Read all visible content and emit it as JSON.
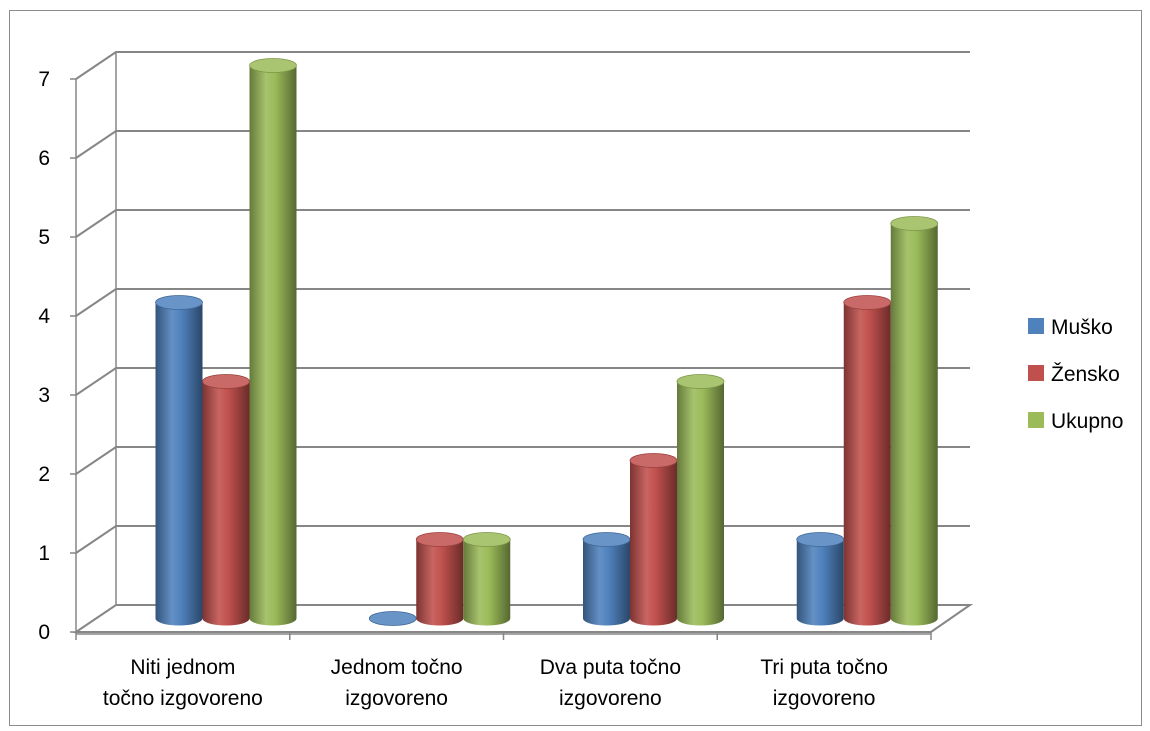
{
  "chart_data": {
    "type": "bar",
    "style": "3d-cylinder",
    "title": "",
    "xlabel": "",
    "ylabel": "",
    "ylim": [
      0,
      7
    ],
    "yticks": [
      "0",
      "1",
      "2",
      "3",
      "4",
      "5",
      "6",
      "7"
    ],
    "grid": true,
    "legend_position": "right",
    "categories": [
      [
        "Niti jednom",
        "točno izgovoreno"
      ],
      [
        "Jednom točno",
        "izgovoreno"
      ],
      [
        "Dva puta točno",
        "izgovoreno"
      ],
      [
        "Tri puta točno",
        "izgovoreno"
      ]
    ],
    "series": [
      {
        "name": "Muško",
        "color": "#4F81BD",
        "values": [
          4,
          0,
          1,
          1
        ]
      },
      {
        "name": "Žensko",
        "color": "#C0504D",
        "values": [
          3,
          1,
          2,
          4
        ]
      },
      {
        "name": "Ukupno",
        "color": "#9BBB59",
        "values": [
          7,
          1,
          3,
          5
        ]
      }
    ]
  }
}
